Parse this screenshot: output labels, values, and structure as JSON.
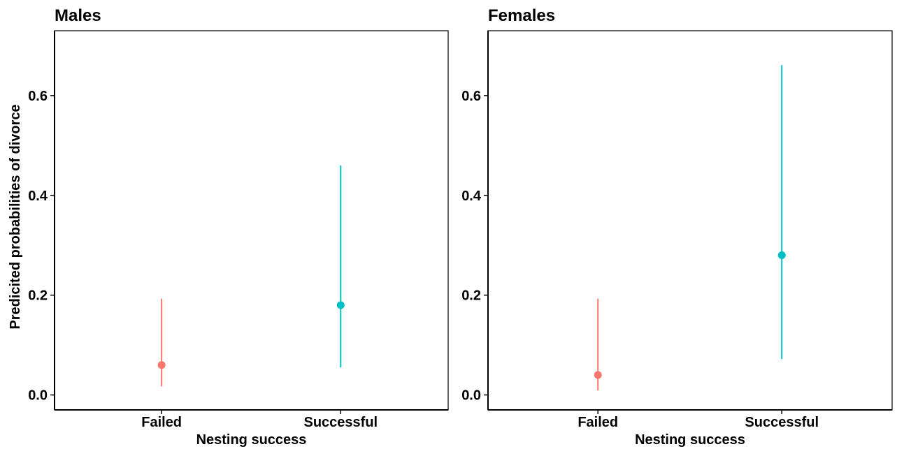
{
  "chart_data": [
    {
      "type": "scatter",
      "title": "Males",
      "xlabel": "Nesting success",
      "ylabel": "Predicited probabilities of divorce",
      "categories": [
        "Failed",
        "Successful"
      ],
      "values": [
        0.06,
        0.18
      ],
      "error_low": [
        0.017,
        0.055
      ],
      "error_high": [
        0.193,
        0.46
      ],
      "colors": [
        "#F8766D",
        "#00BFC4"
      ],
      "yticks": [
        "0.0",
        "0.2",
        "0.4",
        "0.6"
      ],
      "ylim": [
        -0.03,
        0.73
      ],
      "grid": false,
      "legend": "none"
    },
    {
      "type": "scatter",
      "title": "Females",
      "xlabel": "Nesting success",
      "ylabel": "",
      "categories": [
        "Failed",
        "Successful"
      ],
      "values": [
        0.04,
        0.28
      ],
      "error_low": [
        0.009,
        0.072
      ],
      "error_high": [
        0.193,
        0.661
      ],
      "colors": [
        "#F8766D",
        "#00BFC4"
      ],
      "yticks": [
        "0.0",
        "0.2",
        "0.4",
        "0.6"
      ],
      "ylim": [
        -0.03,
        0.73
      ],
      "grid": false,
      "legend": "none"
    }
  ]
}
